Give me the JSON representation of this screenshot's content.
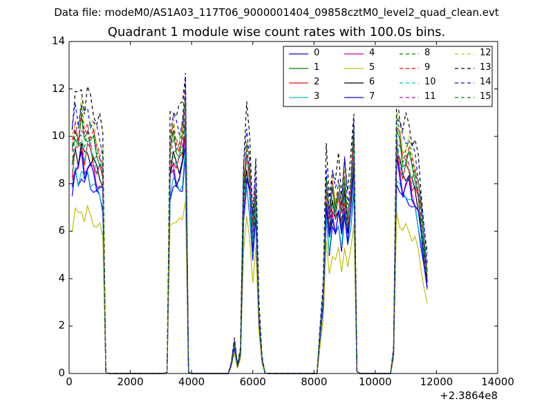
{
  "chart_data": {
    "type": "line",
    "suptitle": "Data file: modeM0/AS1A03_117T06_9000001404_09858cztM0_level2_quad_clean.evt",
    "title": "Quadrant 1 module wise count rates with 100.0s bins.",
    "xlabel": "",
    "ylabel": "",
    "x_offset_label": "+2.3864e8",
    "xlim": [
      0,
      14000
    ],
    "ylim": [
      0,
      14
    ],
    "xticks": [
      0,
      2000,
      4000,
      6000,
      8000,
      10000,
      12000,
      14000
    ],
    "yticks": [
      0,
      2,
      4,
      6,
      8,
      10,
      12,
      14
    ],
    "legend_position": "top-right",
    "legend_columns": 4,
    "bin_seconds": 100.0,
    "x_start": 100,
    "x_step": 100,
    "base_profile": [
      8.7,
      9.6,
      9.3,
      9.9,
      9.2,
      9.6,
      9.3,
      9.1,
      8.7,
      8.6,
      8.2,
      0.05,
      0,
      0,
      0,
      0,
      0,
      0,
      0,
      0,
      0,
      0,
      0,
      0,
      0,
      0,
      0,
      0,
      0,
      0,
      0,
      0.05,
      8.8,
      9.3,
      8.9,
      8.9,
      9.3,
      10.6,
      0.05,
      0,
      0,
      0,
      0,
      0,
      0,
      0,
      0,
      0,
      0,
      0,
      0,
      0,
      0.4,
      1.2,
      0.3,
      0.9,
      7.3,
      9.0,
      8.0,
      5.6,
      7.4,
      2.4,
      0.6,
      0.02,
      0,
      0,
      0,
      0,
      0,
      0,
      0,
      0,
      0,
      0,
      0,
      0,
      0,
      0,
      0,
      0,
      0,
      1.7,
      3.2,
      7.6,
      6.0,
      7.2,
      6.6,
      7.3,
      6.2,
      7.6,
      6.1,
      7.3,
      9.2,
      0.1,
      0,
      0,
      0,
      0,
      0,
      0,
      0,
      0,
      0,
      0,
      0,
      0.9,
      9.6,
      9.0,
      8.4,
      8.6,
      8.6,
      8.1,
      7.9,
      7.3,
      6.3,
      5.1,
      4.0
    ],
    "series": [
      {
        "name": "0",
        "color": "#0000ff",
        "style": "solid",
        "factor": 0.86
      },
      {
        "name": "1",
        "color": "#008000",
        "style": "solid",
        "factor": 1.06
      },
      {
        "name": "2",
        "color": "#ff0000",
        "style": "solid",
        "factor": 0.99
      },
      {
        "name": "3",
        "color": "#00bfbf",
        "style": "solid",
        "factor": 0.88
      },
      {
        "name": "4",
        "color": "#bf00bf",
        "style": "solid",
        "factor": 0.93
      },
      {
        "name": "5",
        "color": "#bfbf00",
        "style": "solid",
        "factor": 0.71
      },
      {
        "name": "6",
        "color": "#000000",
        "style": "solid",
        "factor": 0.98
      },
      {
        "name": "7",
        "color": "#0000ff",
        "style": "solid",
        "factor": 0.92
      },
      {
        "name": "8",
        "color": "#008000",
        "style": "dashed",
        "factor": 1.03
      },
      {
        "name": "9",
        "color": "#ff0000",
        "style": "dashed",
        "factor": 1.09
      },
      {
        "name": "10",
        "color": "#00bfbf",
        "style": "dashed",
        "factor": 1.01
      },
      {
        "name": "11",
        "color": "#bf00bf",
        "style": "dashed",
        "factor": 1.07
      },
      {
        "name": "12",
        "color": "#bfbf00",
        "style": "dashed",
        "factor": 1.13
      },
      {
        "name": "13",
        "color": "#000000",
        "style": "dashed",
        "factor": 1.23
      },
      {
        "name": "14",
        "color": "#0000ff",
        "style": "dashed",
        "factor": 1.16
      },
      {
        "name": "15",
        "color": "#008000",
        "style": "dashed",
        "factor": 1.1
      }
    ]
  }
}
